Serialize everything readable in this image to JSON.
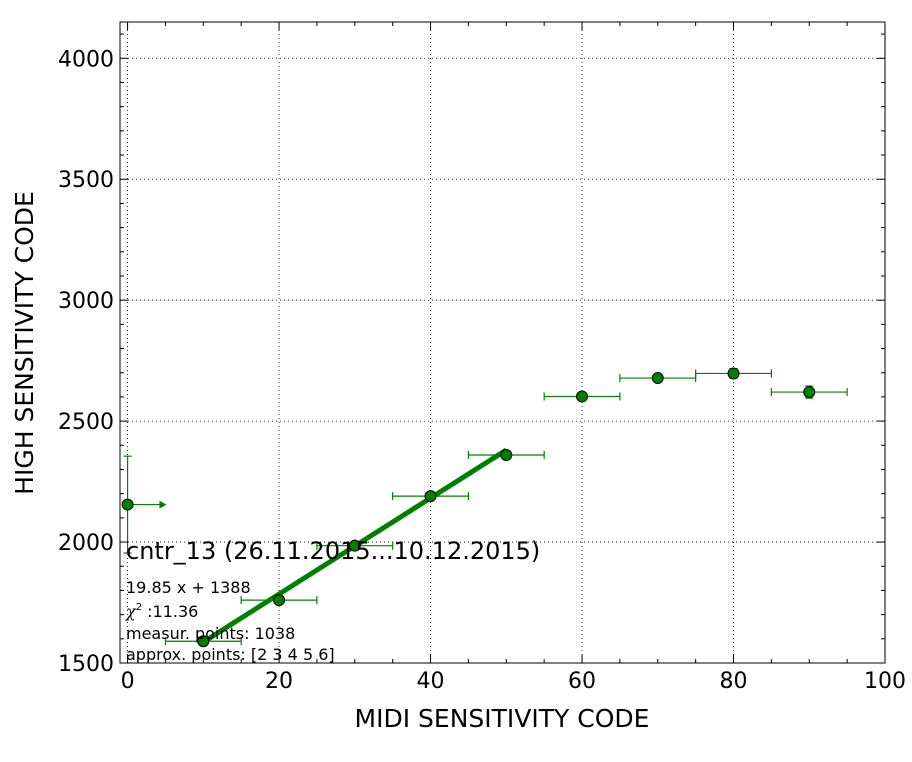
{
  "chart_data": {
    "type": "scatter",
    "xlabel": "MIDI SENSITIVITY CODE",
    "ylabel": "HIGH SENSITIVITY CODE",
    "xlim": [
      -1,
      100
    ],
    "ylim": [
      1500,
      4150
    ],
    "x_ticks": [
      0,
      20,
      40,
      60,
      80,
      100
    ],
    "x_tick_labels": [
      "0",
      "20",
      "40",
      "60",
      "80",
      "100"
    ],
    "y_ticks": [
      1500,
      2000,
      2500,
      3000,
      3500,
      4000
    ],
    "y_tick_labels": [
      "1500",
      "2000",
      "2500",
      "3000",
      "3500",
      "4000"
    ],
    "grid": true,
    "marker_color": "#008000",
    "line_color": "#008000",
    "series": [
      {
        "type": "errorbar",
        "x": [
          0,
          10,
          20,
          30,
          40,
          50,
          60,
          70,
          80,
          90
        ],
        "y": [
          2155,
          1590,
          1760,
          1985,
          2190,
          2360,
          2602,
          2678,
          2697,
          2620
        ],
        "xerr": [
          [
            0,
            5,
            5,
            5,
            5,
            5,
            5,
            5,
            5,
            5
          ],
          [
            5,
            5,
            5,
            5,
            5,
            5,
            5,
            5,
            5,
            5
          ]
        ],
        "yerr": [
          200,
          0,
          0,
          0,
          0,
          0,
          0,
          0,
          20,
          25
        ]
      },
      {
        "type": "line",
        "x": [
          10,
          50
        ],
        "y": [
          1586.5,
          2380.5
        ]
      }
    ],
    "annotations": {
      "title": "cntr_13 (26.11.2015...10.12.2015)",
      "fit": "19.85 x + 1388",
      "chi_symbol": "χ",
      "chi_sup": "2",
      "chi_value": " :11.36",
      "measur": "measur. points: 1038",
      "approx": "approx. points: [2 3 4 5 6]"
    }
  }
}
